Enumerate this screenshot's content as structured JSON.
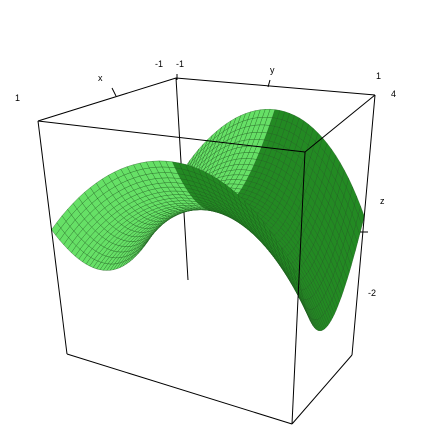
{
  "chart_data": {
    "type": "surface",
    "title": "",
    "function": "z = x^2 - y^2 (saddle surface)",
    "x_range": [
      -1,
      1
    ],
    "y_range": [
      -1,
      1
    ],
    "z_range": [
      -2,
      4
    ],
    "axis_labels": {
      "x": "x",
      "y": "y",
      "z": "z"
    },
    "tick_labels": {
      "x_min": "-1",
      "x_max": "1",
      "y_min": "-1",
      "y_max": "1",
      "z_min": "-2",
      "z_max": "4"
    },
    "mesh_resolution": 40,
    "colors": {
      "surface_light": "#66e066",
      "surface_dark": "#238a23",
      "mesh": "#1f5f1f",
      "box": "#000000"
    }
  }
}
